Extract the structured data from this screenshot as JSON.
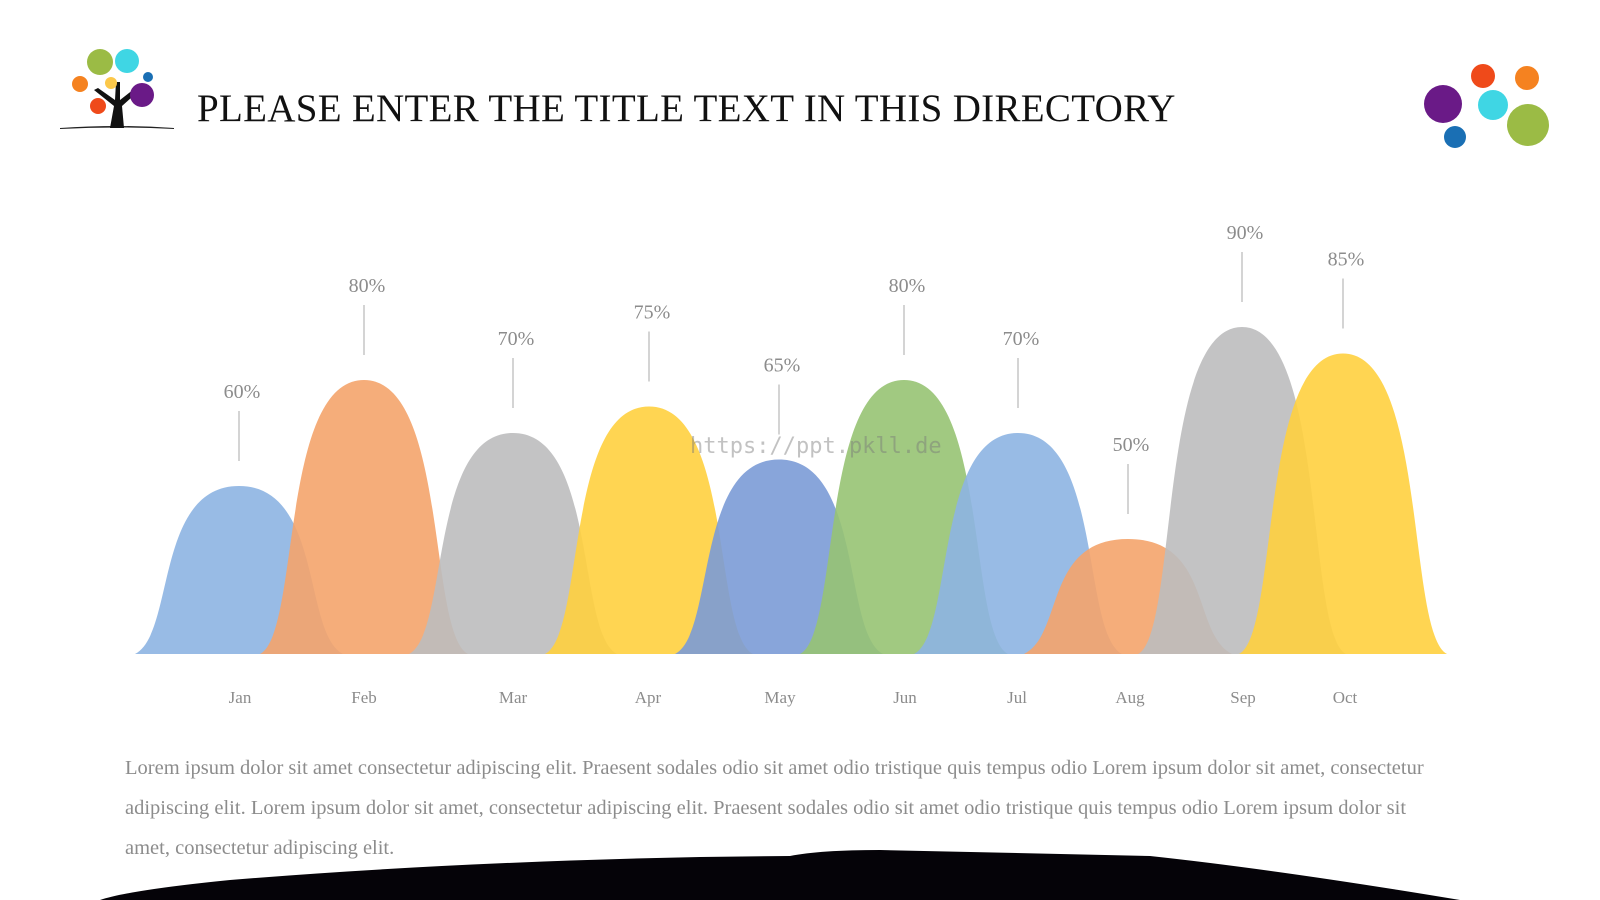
{
  "title": "PLEASE ENTER THE TITLE TEXT IN THIS DIRECTORY",
  "watermark": "https://ppt.pkll.de",
  "paragraph": "Lorem ipsum dolor sit amet consectetur adipiscing elit. Praesent sodales odio sit amet odio tristique quis tempus odio Lorem ipsum dolor sit amet, consectetur adipiscing elit. Lorem ipsum dolor sit amet, consectetur adipiscing elit. Praesent sodales odio sit amet odio tristique quis tempus odio Lorem ipsum dolor sit amet, consectetur adipiscing elit.",
  "chart_data": {
    "type": "area",
    "categories": [
      "Jan",
      "Feb",
      "Mar",
      "Apr",
      "May",
      "Jun",
      "Jul",
      "Aug",
      "Sep",
      "Oct"
    ],
    "values": [
      60,
      80,
      70,
      75,
      65,
      80,
      70,
      50,
      90,
      85
    ],
    "value_labels": [
      "60%",
      "80%",
      "70%",
      "75%",
      "65%",
      "80%",
      "70%",
      "50%",
      "90%",
      "85%"
    ],
    "colors": [
      "#8db4e2",
      "#f4a46c",
      "#bdbcbe",
      "#ffd03f",
      "#7b9bd6",
      "#97c373",
      "#8db4e2",
      "#f4a46c",
      "#bdbcbe",
      "#ffd03f"
    ],
    "grid": false,
    "title": "",
    "xlabel": "",
    "ylabel": ""
  }
}
